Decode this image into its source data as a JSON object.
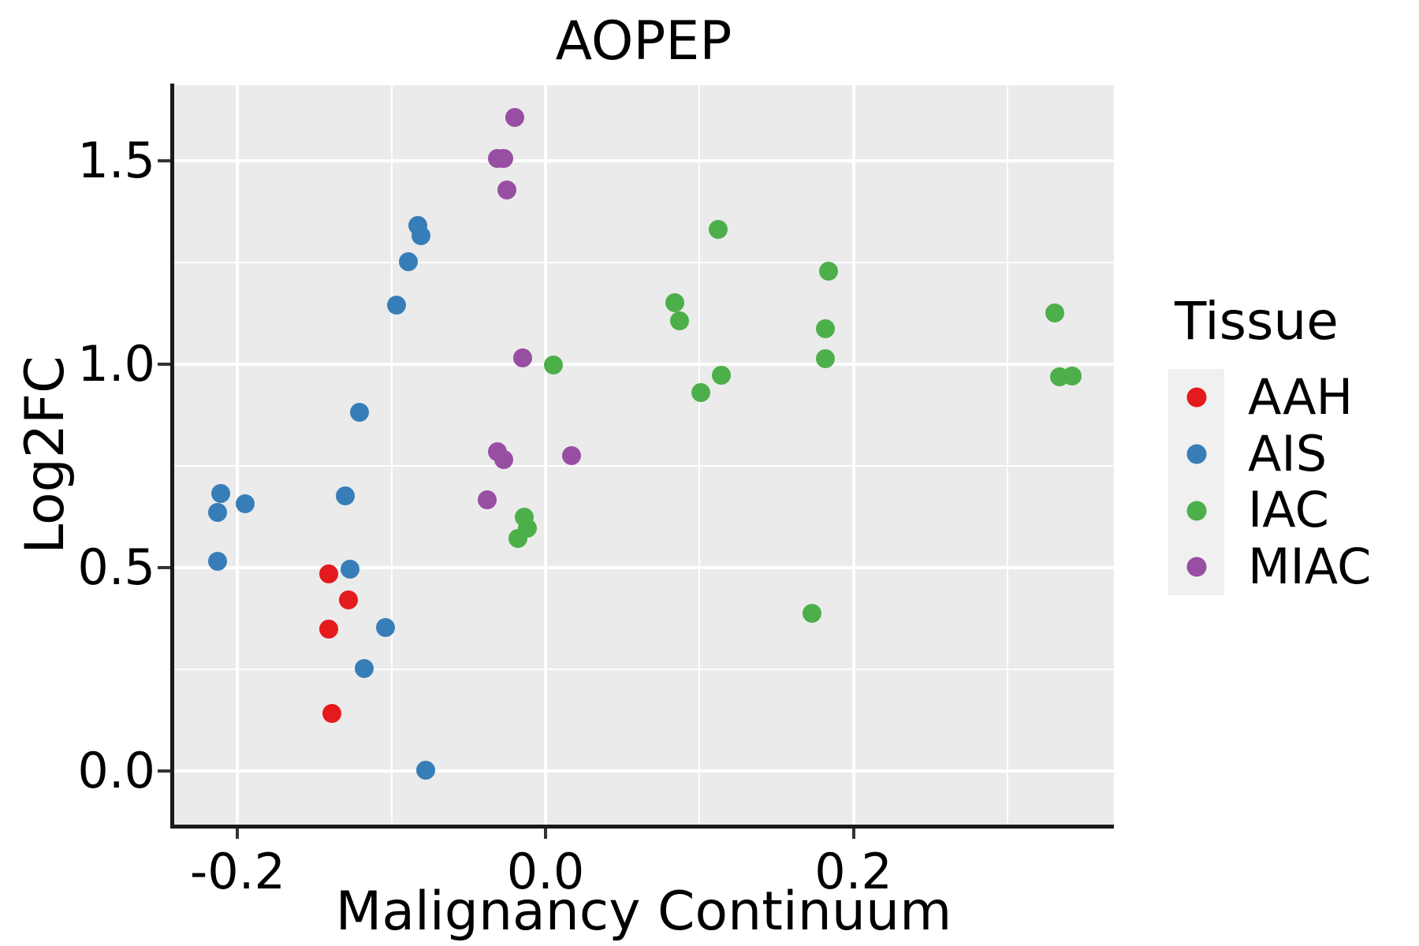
{
  "title": "AOPEP",
  "axes": {
    "x": {
      "title": "Malignancy Continuum"
    },
    "y": {
      "title": "Log2FC"
    }
  },
  "legend": {
    "title": "Tissue",
    "position": "right",
    "items": [
      {
        "label": "AAH",
        "color": "#E41A1C"
      },
      {
        "label": "AIS",
        "color": "#377EB8"
      },
      {
        "label": "IAC",
        "color": "#4DAF4A"
      },
      {
        "label": "MIAC",
        "color": "#984EA3"
      }
    ]
  },
  "style_colors": {
    "panel_background": "#EBEBEB",
    "gridline": "#FFFFFF",
    "spine": "#1a1a1a",
    "tick": "#333333",
    "legend_key_background": "#F0F0F0"
  },
  "chart_data": {
    "type": "scatter",
    "title": "AOPEP",
    "xlabel": "Malignancy Continuum",
    "ylabel": "Log2FC",
    "xlim": [
      -0.2417,
      0.3692
    ],
    "ylim": [
      -0.1318,
      1.686
    ],
    "x_ticks": {
      "values": [
        -0.2,
        0.0,
        0.2
      ],
      "labels": [
        "-0.2",
        "0.0",
        "0.2"
      ]
    },
    "y_ticks": {
      "values": [
        0.0,
        0.5,
        1.0,
        1.5
      ],
      "labels": [
        "0.0",
        "0.5",
        "1.0",
        "1.5"
      ]
    },
    "x_minor_gridlines": [
      -0.1,
      0.1,
      0.3
    ],
    "y_minor_gridlines": [
      0.25,
      0.75,
      1.25
    ],
    "grid": "on",
    "legend_position": "right",
    "series": [
      {
        "name": "AAH",
        "color": "#E41A1C",
        "points": [
          [
            -0.141,
            0.485
          ],
          [
            -0.128,
            0.421
          ],
          [
            -0.141,
            0.349
          ],
          [
            -0.139,
            0.141
          ]
        ]
      },
      {
        "name": "AIS",
        "color": "#377EB8",
        "points": [
          [
            -0.211,
            0.682
          ],
          [
            -0.213,
            0.636
          ],
          [
            -0.195,
            0.657
          ],
          [
            -0.213,
            0.516
          ],
          [
            -0.121,
            0.882
          ],
          [
            -0.13,
            0.677
          ],
          [
            -0.127,
            0.496
          ],
          [
            -0.104,
            0.353
          ],
          [
            -0.118,
            0.252
          ],
          [
            -0.078,
            0.001
          ],
          [
            -0.097,
            1.145
          ],
          [
            -0.089,
            1.252
          ],
          [
            -0.083,
            1.341
          ],
          [
            -0.081,
            1.316
          ]
        ]
      },
      {
        "name": "IAC",
        "color": "#4DAF4A",
        "points": [
          [
            0.112,
            1.331
          ],
          [
            0.184,
            1.229
          ],
          [
            0.084,
            1.151
          ],
          [
            0.087,
            1.107
          ],
          [
            0.182,
            1.087
          ],
          [
            0.182,
            1.014
          ],
          [
            0.114,
            0.973
          ],
          [
            0.101,
            0.93
          ],
          [
            0.005,
            0.998
          ],
          [
            0.331,
            1.126
          ],
          [
            0.334,
            0.969
          ],
          [
            0.342,
            0.971
          ],
          [
            0.173,
            0.388
          ],
          [
            -0.014,
            0.624
          ],
          [
            -0.012,
            0.597
          ],
          [
            -0.018,
            0.572
          ]
        ]
      },
      {
        "name": "MIAC",
        "color": "#984EA3",
        "points": [
          [
            -0.02,
            1.607
          ],
          [
            -0.031,
            1.506
          ],
          [
            -0.027,
            1.506
          ],
          [
            -0.025,
            1.428
          ],
          [
            -0.015,
            1.016
          ],
          [
            -0.031,
            0.785
          ],
          [
            -0.027,
            0.766
          ],
          [
            0.017,
            0.775
          ],
          [
            -0.038,
            0.667
          ]
        ]
      }
    ]
  }
}
